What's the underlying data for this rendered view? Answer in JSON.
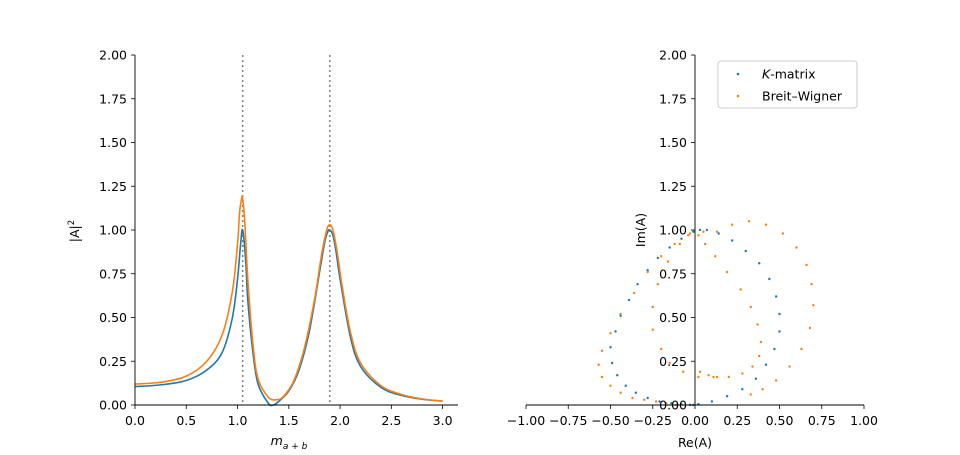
{
  "chart_data": [
    {
      "type": "line",
      "title": "",
      "xlabel": "m",
      "xlabel_sub": "a + b",
      "ylabel": "|A|",
      "ylabel_sup": "2",
      "xlim": [
        0,
        3.15
      ],
      "ylim": [
        0,
        2.0
      ],
      "xticks": [
        "0.0",
        "0.5",
        "1.0",
        "1.5",
        "2.0",
        "2.5",
        "3.0"
      ],
      "yticks": [
        "0.00",
        "0.25",
        "0.50",
        "0.75",
        "1.00",
        "1.25",
        "1.50",
        "1.75",
        "2.00"
      ],
      "vertical_lines": [
        1.05,
        1.9
      ],
      "colors": [
        "#1f77b4",
        "#ff7f0e"
      ],
      "series": [
        {
          "name": "K-matrix",
          "x": [
            0.0,
            0.25,
            0.5,
            0.7,
            0.85,
            0.95,
            1.0,
            1.03,
            1.05,
            1.08,
            1.1,
            1.15,
            1.2,
            1.3,
            1.35,
            1.4,
            1.5,
            1.6,
            1.7,
            1.8,
            1.85,
            1.88,
            1.9,
            1.93,
            1.96,
            2.0,
            2.1,
            2.2,
            2.4,
            2.6,
            2.8,
            3.0
          ],
          "values": [
            0.105,
            0.115,
            0.14,
            0.2,
            0.3,
            0.5,
            0.72,
            0.92,
            1.0,
            0.82,
            0.6,
            0.3,
            0.12,
            0.01,
            0.0,
            0.02,
            0.08,
            0.2,
            0.42,
            0.76,
            0.93,
            0.99,
            1.0,
            0.97,
            0.88,
            0.72,
            0.39,
            0.22,
            0.1,
            0.055,
            0.033,
            0.022
          ]
        },
        {
          "name": "Breit–Wigner",
          "x": [
            0.0,
            0.25,
            0.5,
            0.7,
            0.85,
            0.95,
            1.0,
            1.02,
            1.04,
            1.05,
            1.07,
            1.1,
            1.15,
            1.2,
            1.3,
            1.38,
            1.45,
            1.55,
            1.65,
            1.75,
            1.82,
            1.87,
            1.9,
            1.93,
            1.97,
            2.02,
            2.1,
            2.2,
            2.4,
            2.6,
            2.8,
            3.0
          ],
          "values": [
            0.12,
            0.13,
            0.165,
            0.25,
            0.4,
            0.65,
            0.92,
            1.1,
            1.18,
            1.18,
            1.05,
            0.72,
            0.35,
            0.15,
            0.045,
            0.03,
            0.05,
            0.14,
            0.32,
            0.6,
            0.86,
            1.0,
            1.03,
            1.0,
            0.88,
            0.68,
            0.42,
            0.24,
            0.11,
            0.06,
            0.035,
            0.022
          ]
        }
      ]
    },
    {
      "type": "scatter",
      "title": "",
      "xlabel": "Re(A)",
      "ylabel": "Im(A)",
      "xlim": [
        -1.0,
        1.0
      ],
      "ylim": [
        0,
        2.0
      ],
      "xticks": [
        "−1.00",
        "−0.75",
        "−0.50",
        "−0.25",
        "0.00",
        "0.25",
        "0.50",
        "0.75",
        "1.00"
      ],
      "yticks": [
        "0.00",
        "0.25",
        "0.50",
        "0.75",
        "1.00",
        "1.25",
        "1.50",
        "1.75",
        "2.00"
      ],
      "legend_position": "top-right",
      "colors": [
        "#1f77b4",
        "#ff7f0e"
      ],
      "series": [
        {
          "name": "K-matrix",
          "legend_italic": "K",
          "legend_rest": "-matrix",
          "x": [
            0.02,
            0.1,
            0.19,
            0.28,
            0.36,
            0.42,
            0.47,
            0.5,
            0.5,
            0.48,
            0.44,
            0.38,
            0.3,
            0.22,
            0.14,
            0.07,
            0.03,
            -0.01,
            -0.08,
            -0.15,
            -0.22,
            -0.28,
            -0.34,
            -0.39,
            -0.44,
            -0.47,
            -0.5,
            -0.49,
            -0.46,
            -0.41,
            -0.35,
            -0.28,
            -0.21,
            -0.14,
            -0.08,
            -0.03,
            -0.01
          ],
          "y": [
            0.005,
            0.02,
            0.05,
            0.09,
            0.15,
            0.23,
            0.32,
            0.42,
            0.52,
            0.62,
            0.72,
            0.81,
            0.88,
            0.94,
            0.98,
            1.0,
            1.0,
            0.99,
            0.95,
            0.9,
            0.84,
            0.77,
            0.69,
            0.6,
            0.51,
            0.42,
            0.33,
            0.24,
            0.17,
            0.11,
            0.07,
            0.04,
            0.02,
            0.01,
            0.004,
            0.001,
            0.0
          ]
        },
        {
          "name": "Breit–Wigner",
          "x": [
            0.33,
            0.4,
            0.48,
            0.56,
            0.63,
            0.68,
            0.7,
            0.69,
            0.66,
            0.6,
            0.52,
            0.42,
            0.32,
            0.22,
            0.13,
            0.05,
            0.02,
            0.06,
            0.12,
            0.19,
            0.27,
            0.33,
            0.37,
            0.39,
            0.38,
            0.34,
            0.28,
            0.2,
            0.11,
            0.02,
            -0.07,
            -0.15,
            -0.2,
            -0.25,
            -0.25,
            -0.22,
            -0.16,
            -0.09,
            -0.03,
            0.03,
            0.08,
            0.13,
            -0.04,
            -0.12,
            -0.2,
            -0.28,
            -0.36,
            -0.44,
            -0.5,
            -0.55,
            -0.57,
            -0.55,
            -0.5,
            -0.44,
            -0.37,
            -0.3,
            -0.23,
            -0.17,
            -0.11
          ],
          "y": [
            0.06,
            0.09,
            0.14,
            0.22,
            0.32,
            0.44,
            0.57,
            0.69,
            0.8,
            0.9,
            0.98,
            1.03,
            1.05,
            1.03,
            0.99,
            0.99,
            0.97,
            0.92,
            0.85,
            0.76,
            0.66,
            0.56,
            0.46,
            0.36,
            0.28,
            0.22,
            0.18,
            0.16,
            0.16,
            0.16,
            0.19,
            0.24,
            0.32,
            0.43,
            0.56,
            0.69,
            0.82,
            0.92,
            0.98,
            0.19,
            0.17,
            0.16,
            0.97,
            0.92,
            0.85,
            0.76,
            0.64,
            0.52,
            0.41,
            0.31,
            0.23,
            0.16,
            0.11,
            0.07,
            0.04,
            0.03,
            0.02,
            0.01,
            0.0
          ]
        }
      ]
    }
  ]
}
